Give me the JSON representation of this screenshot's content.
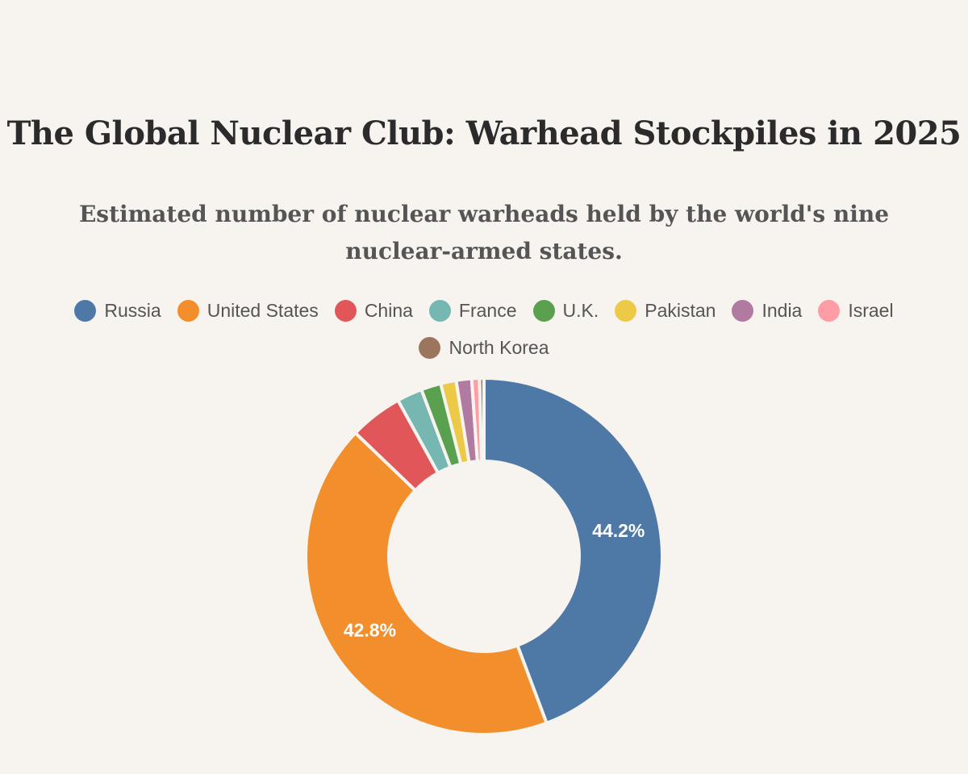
{
  "chart_data": {
    "type": "pie",
    "title": "The Global Nuclear Club: Warhead Stockpiles in 2025",
    "subtitle": "Estimated number of nuclear warheads held by the world's nine nuclear-armed states.",
    "categories": [
      "Russia",
      "United States",
      "China",
      "France",
      "U.K.",
      "Pakistan",
      "India",
      "Israel",
      "North Korea"
    ],
    "values": [
      44.2,
      42.8,
      4.8,
      2.3,
      1.8,
      1.4,
      1.4,
      0.7,
      0.4
    ],
    "colors": [
      "#4e79a7",
      "#f28e2b",
      "#e15759",
      "#76b7b2",
      "#59a14f",
      "#edc948",
      "#b07aa1",
      "#ff9da7",
      "#9c755f"
    ],
    "data_labels": [
      "44.2%",
      "42.8%",
      "",
      "",
      "",
      "",
      "",
      "",
      ""
    ],
    "donut": true,
    "legend_position": "top"
  }
}
